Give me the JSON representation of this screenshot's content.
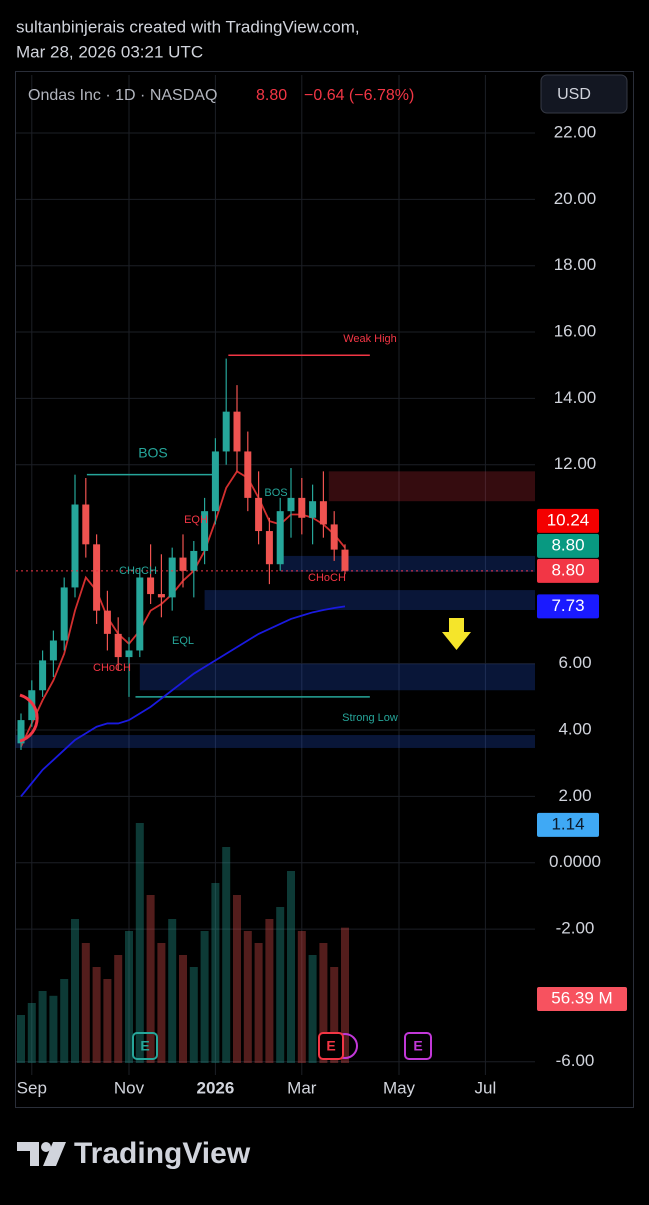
{
  "header": {
    "credit": "sultanbinjerais created with TradingView.com,",
    "timestamp": "Mar 28, 2026 03:21 UTC"
  },
  "chart_data": {
    "type": "candlestick",
    "symbol": "Ondas Inc · 1D · NASDAQ",
    "price": "8.80",
    "change": "−0.64 (−6.78%)",
    "currency": "USD",
    "categories": [
      null,
      "Sep",
      null,
      null,
      null,
      null,
      null,
      null,
      null,
      null,
      "Nov",
      null,
      null,
      null,
      null,
      null,
      null,
      null,
      "2026",
      null,
      null,
      null,
      null,
      null,
      null,
      null,
      "Mar",
      null,
      null,
      null,
      null,
      null,
      null,
      null,
      null,
      "May",
      null,
      null,
      null,
      null,
      null,
      null,
      null,
      "Jul",
      null,
      null,
      null,
      null
    ],
    "open": [
      3.6,
      4.3,
      5.2,
      6.1,
      6.7,
      8.3,
      10.8,
      9.6,
      7.6,
      6.9,
      6.2,
      6.4,
      8.6,
      8.1,
      8.0,
      9.2,
      8.8,
      9.4,
      10.6,
      12.4,
      13.6,
      12.4,
      11.0,
      10.0,
      9.0,
      10.6,
      11.0,
      10.4,
      10.9,
      10.2,
      9.44,
      null,
      null,
      null,
      null,
      null,
      null,
      null,
      null,
      null,
      null,
      null,
      null,
      null,
      null,
      null,
      null,
      null
    ],
    "high": [
      4.5,
      5.5,
      6.4,
      7.0,
      8.6,
      11.7,
      11.6,
      9.9,
      8.2,
      7.4,
      6.8,
      8.9,
      9.6,
      9.3,
      9.5,
      9.9,
      9.7,
      11.0,
      12.8,
      15.2,
      14.4,
      13.0,
      11.8,
      10.4,
      11.0,
      11.9,
      11.6,
      11.4,
      11.8,
      10.6,
      9.6,
      null,
      null,
      null,
      null,
      null,
      null,
      null,
      null,
      null,
      null,
      null,
      null,
      null,
      null,
      null,
      null,
      null
    ],
    "low": [
      3.4,
      4.1,
      5.0,
      5.6,
      6.4,
      8.0,
      9.2,
      7.2,
      6.4,
      5.8,
      5.0,
      6.2,
      7.8,
      7.4,
      7.6,
      8.3,
      8.0,
      9.0,
      10.2,
      12.0,
      11.8,
      10.6,
      9.6,
      8.4,
      8.8,
      9.8,
      9.9,
      9.6,
      9.8,
      9.1,
      8.7,
      null,
      null,
      null,
      null,
      null,
      null,
      null,
      null,
      null,
      null,
      null,
      null,
      null,
      null,
      null,
      null,
      null
    ],
    "close": [
      4.3,
      5.2,
      6.1,
      6.7,
      8.3,
      10.8,
      9.6,
      7.6,
      6.9,
      6.2,
      6.4,
      8.6,
      8.1,
      8.0,
      9.2,
      8.8,
      9.4,
      10.6,
      12.4,
      13.6,
      12.4,
      11.0,
      10.0,
      9.0,
      10.6,
      11.0,
      10.4,
      10.9,
      10.2,
      9.44,
      8.8,
      null,
      null,
      null,
      null,
      null,
      null,
      null,
      null,
      null,
      null,
      null,
      null,
      null,
      null,
      null,
      null,
      null
    ],
    "volume": [
      20,
      25,
      30,
      28,
      35,
      60,
      50,
      40,
      35,
      45,
      55,
      100,
      70,
      50,
      60,
      45,
      40,
      55,
      75,
      90,
      70,
      55,
      50,
      60,
      65,
      80,
      55,
      45,
      50,
      40,
      56.39,
      null,
      null,
      null,
      null,
      null,
      null,
      null,
      null,
      null,
      null,
      null,
      null,
      null,
      null,
      null,
      null,
      null
    ],
    "volume_label": "56.39 M",
    "up_color": "#26a69a",
    "down_color": "#ef5350",
    "overlays": [
      {
        "color": "#d32f2f",
        "values": [
          3.5,
          4.2,
          4.9,
          5.5,
          6.3,
          7.6,
          8.6,
          8.2,
          7.4,
          6.9,
          6.6,
          7.0,
          7.6,
          7.8,
          8.1,
          8.5,
          8.8,
          9.4,
          10.3,
          11.3,
          11.8,
          11.6,
          11.0,
          10.3,
          10.2,
          10.5,
          10.5,
          10.4,
          10.2,
          9.9,
          9.5,
          null,
          null,
          null,
          null,
          null,
          null,
          null,
          null,
          null,
          null,
          null,
          null,
          null,
          null,
          null,
          null,
          null
        ]
      },
      {
        "color": "#1a1adf",
        "values": [
          2.0,
          2.4,
          2.8,
          3.1,
          3.4,
          3.7,
          3.9,
          4.1,
          4.2,
          4.2,
          4.3,
          4.5,
          4.7,
          4.95,
          5.2,
          5.45,
          5.7,
          5.9,
          6.1,
          6.3,
          6.5,
          6.7,
          6.9,
          7.05,
          7.2,
          7.35,
          7.45,
          7.55,
          7.62,
          7.68,
          7.73,
          null,
          null,
          null,
          null,
          null,
          null,
          null,
          null,
          null,
          null,
          null,
          null,
          null,
          null,
          null,
          null,
          null
        ]
      }
    ],
    "zones": [
      {
        "low": 10.9,
        "high": 11.8,
        "color": "#f23645"
      },
      {
        "low": 8.77,
        "high": 9.25,
        "color": "#2962ff"
      },
      {
        "low": 7.62,
        "high": 8.22,
        "color": "#2962ff"
      },
      {
        "low": 5.2,
        "high": 6.0,
        "color": "#2962ff"
      },
      {
        "low": 3.46,
        "high": 3.85,
        "color": "#2962ff"
      }
    ],
    "levels": [
      {
        "value": 15.3,
        "color": "#f23645"
      },
      {
        "value": 11.7,
        "color": "#26a69a"
      },
      {
        "value": 5.0,
        "color": "#26a69a"
      }
    ],
    "annotations": [
      {
        "text": "Weak High",
        "color": "#f23645"
      },
      {
        "text": "BOS",
        "color": "#26a69a"
      },
      {
        "text": "Strong Low",
        "color": "#26a69a"
      },
      {
        "text": "CHoCH",
        "color": "#26a69a"
      },
      {
        "text": "CHoCH",
        "color": "#f23645"
      },
      {
        "text": "EQL",
        "color": "#26a69a"
      },
      {
        "text": "EQH",
        "color": "#f23645"
      },
      {
        "text": "BOS",
        "color": "#26a69a"
      },
      {
        "text": "CHoCH",
        "color": "#f23645"
      }
    ],
    "last_price": 8.8,
    "last_color": "#f23645",
    "price_labels": [
      {
        "value": 10.24,
        "label": "10.24",
        "color": "#f40000"
      },
      {
        "value": 8.8,
        "label": "8.80",
        "color": "#089981"
      },
      {
        "value": 8.8,
        "label": "8.80",
        "color": "#f23645"
      },
      {
        "value": 7.73,
        "label": "7.73",
        "color": "#1a1aff"
      },
      {
        "value": 1.14,
        "label": "1.14",
        "color": "#3fa9f5"
      }
    ],
    "ylim": [
      -6.4,
      23.75
    ],
    "yticks": [
      {
        "value": 22,
        "label": "22.00"
      },
      {
        "value": 20,
        "label": "20.00"
      },
      {
        "value": 18,
        "label": "18.00"
      },
      {
        "value": 16,
        "label": "16.00"
      },
      {
        "value": 14,
        "label": "14.00"
      },
      {
        "value": 12,
        "label": "12.00"
      },
      {
        "value": 6,
        "label": "6.00"
      },
      {
        "value": 4,
        "label": "4.00"
      },
      {
        "value": 2,
        "label": "2.00"
      },
      {
        "value": 0,
        "label": "0.0000"
      },
      {
        "value": -2,
        "label": "-2.00"
      },
      {
        "value": -6,
        "label": "-6.00"
      }
    ],
    "grid": true
  },
  "footer": {
    "brand": "TradingView"
  }
}
